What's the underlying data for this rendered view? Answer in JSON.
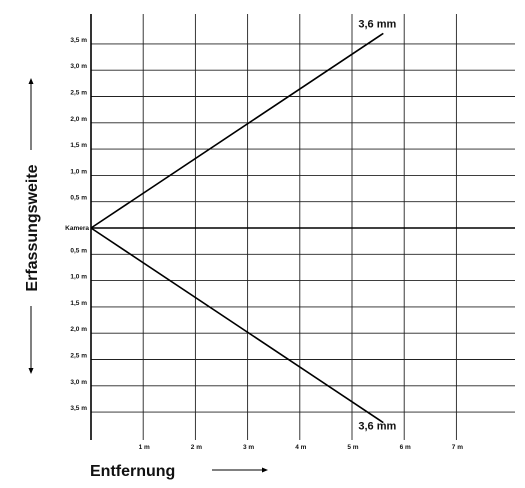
{
  "chart_data": {
    "type": "line",
    "xlabel": "Entfernung",
    "ylabel": "Erfassungsweite",
    "origin_label": "Kamera",
    "xlim": [
      0,
      8.0
    ],
    "ylim": [
      -3.75,
      3.75
    ],
    "x_ticks": [
      1,
      2,
      3,
      4,
      5,
      6,
      7
    ],
    "x_tick_labels": [
      "1 m",
      "2 m",
      "3 m",
      "4 m",
      "5 m",
      "6 m",
      "7 m"
    ],
    "y_ticks_upper": [
      3.5,
      3.0,
      2.5,
      2.0,
      1.5,
      1.0,
      0.5
    ],
    "y_tick_labels_upper": [
      "3,5 m",
      "3,0 m",
      "2,5 m",
      "2,0 m",
      "1,5 m",
      "1,0 m",
      "0,5 m"
    ],
    "y_ticks_lower": [
      -0.5,
      -1.0,
      -1.5,
      -2.0,
      -2.5,
      -3.0,
      -3.5
    ],
    "y_tick_labels_lower": [
      "0,5 m",
      "1,0 m",
      "1,5 m",
      "2,0 m",
      "2,5 m",
      "3,0 m",
      "3,5 m"
    ],
    "grid": true,
    "series": [
      {
        "name": "3,6 mm",
        "x": [
          0,
          5.6
        ],
        "y": [
          0,
          3.7
        ]
      },
      {
        "name": "3,6 mm",
        "x": [
          0,
          5.6
        ],
        "y": [
          0,
          -3.7
        ]
      }
    ]
  }
}
